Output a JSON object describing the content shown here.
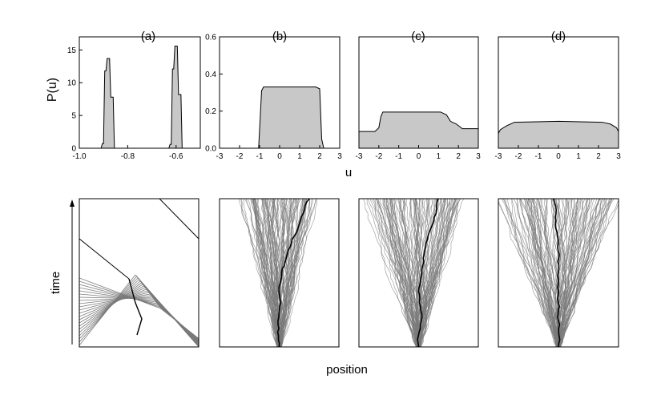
{
  "figure": {
    "shared_xlabel_top": "u",
    "shared_ylabel_top": "P(u)",
    "bottom_xlabel": "position",
    "bottom_ylabel": "time"
  },
  "colors": {
    "fill": "#c8c8c8",
    "edge": "#000000",
    "trajectory": "#7a7a7a",
    "trajectory_dark": "#000000"
  },
  "chart_data": [
    {
      "panel": "(a)",
      "type": "area",
      "title": "(a)",
      "xlabel": "",
      "ylabel": "P(u)",
      "xlim": [
        -1.0,
        -0.5
      ],
      "ylim": [
        0,
        17
      ],
      "xticks": [
        -1.0,
        -0.8,
        -0.6
      ],
      "xtick_labels": [
        "-1.0",
        "-0.8",
        "-0.6"
      ],
      "yticks": [
        0,
        5,
        10,
        15
      ],
      "ytick_labels": [
        "0",
        "5",
        "10",
        "15"
      ],
      "x": [
        -0.91,
        -0.905,
        -0.9,
        -0.895,
        -0.89,
        -0.885,
        -0.88,
        -0.875,
        -0.87,
        -0.865,
        -0.86,
        -0.855,
        -0.85,
        -0.845,
        -0.84,
        -0.835,
        -0.63,
        -0.625,
        -0.62,
        -0.615,
        -0.61,
        -0.605,
        -0.6,
        -0.595,
        -0.59,
        -0.585,
        -0.58,
        -0.575,
        -0.57
      ],
      "y": [
        0,
        0.7,
        0.7,
        11.8,
        11.8,
        13.7,
        13.7,
        13.7,
        7.8,
        7.8,
        7.8,
        0,
        0,
        0,
        0,
        0,
        0,
        0.6,
        0.6,
        12.1,
        12.1,
        15.6,
        15.6,
        15.6,
        8.2,
        8.2,
        8.2,
        0,
        0
      ],
      "grid": false,
      "legend": "none"
    },
    {
      "panel": "(b)",
      "type": "area",
      "title": "(b)",
      "xlabel": "u",
      "ylabel": "",
      "xlim": [
        -3,
        3
      ],
      "ylim": [
        0,
        0.6
      ],
      "xticks": [
        -3,
        -2,
        -1,
        0,
        1,
        2,
        3
      ],
      "xtick_labels": [
        "-3",
        "-2",
        "-1",
        "0",
        "1",
        "2",
        "3"
      ],
      "yticks": [
        0.0,
        0.2,
        0.4,
        0.6
      ],
      "ytick_labels": [
        "0.0",
        "0.2",
        "0.4",
        "0.6"
      ],
      "x": [
        -3,
        -1.05,
        -1.0,
        -0.9,
        -0.8,
        0,
        1,
        1.8,
        2.0,
        2.1,
        2.2,
        3
      ],
      "y": [
        0,
        0,
        0.1,
        0.31,
        0.33,
        0.33,
        0.33,
        0.33,
        0.32,
        0.05,
        0,
        0
      ],
      "grid": false,
      "legend": "none"
    },
    {
      "panel": "(c)",
      "type": "area",
      "title": "(c)",
      "xlabel": "u",
      "ylabel": "",
      "xlim": [
        -3,
        3
      ],
      "ylim": [
        0,
        0.6
      ],
      "xticks": [
        -3,
        -2,
        -1,
        0,
        1,
        2,
        3
      ],
      "xtick_labels": [
        "-3",
        "-2",
        "-1",
        "0",
        "1",
        "2",
        "3"
      ],
      "x": [
        -3,
        -2.2,
        -2.0,
        -1.9,
        -1.8,
        0,
        1.1,
        1.4,
        1.6,
        1.9,
        2.2,
        3
      ],
      "y": [
        0.09,
        0.09,
        0.11,
        0.17,
        0.195,
        0.195,
        0.195,
        0.18,
        0.145,
        0.13,
        0.105,
        0.105
      ],
      "grid": false,
      "legend": "none"
    },
    {
      "panel": "(d)",
      "type": "area",
      "title": "(d)",
      "xlabel": "u",
      "ylabel": "",
      "xlim": [
        -3,
        3
      ],
      "ylim": [
        0,
        0.6
      ],
      "xticks": [
        -3,
        -2,
        -1,
        0,
        1,
        2,
        3
      ],
      "xtick_labels": [
        "-3",
        "-2",
        "-1",
        "0",
        "1",
        "2",
        "3"
      ],
      "x": [
        -3,
        -2.9,
        -2.6,
        -2.2,
        0,
        2.2,
        2.6,
        2.9,
        3
      ],
      "y": [
        0.08,
        0.1,
        0.12,
        0.14,
        0.145,
        0.14,
        0.13,
        0.11,
        0.09
      ],
      "grid": false,
      "legend": "none"
    }
  ]
}
